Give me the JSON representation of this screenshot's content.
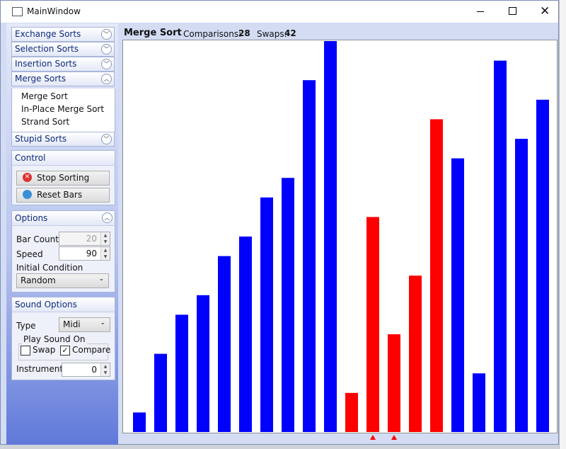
{
  "window": {
    "title": "MainWindow"
  },
  "sidebar": {
    "groups": [
      {
        "label": "Exchange Sorts"
      },
      {
        "label": "Selection Sorts"
      },
      {
        "label": "Insertion Sorts"
      },
      {
        "label": "Merge Sorts",
        "items": [
          "Merge Sort",
          "In-Place Merge Sort",
          "Strand Sort"
        ]
      },
      {
        "label": "Stupid Sorts"
      }
    ]
  },
  "control": {
    "title": "Control",
    "buttons": [
      "Stop Sorting",
      "Reset Bars"
    ]
  },
  "options": {
    "title": "Options",
    "bar_count_label": "Bar Count",
    "bar_count": 20,
    "speed_label": "Speed",
    "speed": 90,
    "initial_condition_label": "Initial Condition",
    "initial_condition": "Random"
  },
  "sound_options": {
    "title": "Sound Options",
    "type_label": "Type",
    "type": "Midi",
    "play_sound_on": "Play Sound On",
    "swap": "Swap",
    "swap_checked": false,
    "compare": "Compare",
    "compare_checked": true,
    "instrument_label": "Instrument",
    "instrument": 0
  },
  "header": {
    "algorithm": "Merge Sort",
    "comparisons_label": "Comparisons:",
    "comparisons": 28,
    "swaps_label": "Swaps:",
    "swaps": 42
  },
  "bars": {
    "values": [
      1,
      4,
      6,
      7,
      9,
      10,
      12,
      13,
      18,
      20,
      2,
      11,
      5,
      8,
      16,
      14,
      3,
      19,
      15,
      17
    ],
    "colors": [
      "#0000ff",
      "#0000ff",
      "#0000ff",
      "#0000ff",
      "#0000ff",
      "#0000ff",
      "#0000ff",
      "#0000ff",
      "#0000ff",
      "#0000ff",
      "#ff0000",
      "#ff0000",
      "#ff0000",
      "#ff0000",
      "#ff0000",
      "#0000ff",
      "#0000ff",
      "#0000ff",
      "#0000ff",
      "#0000ff"
    ],
    "pointers": [
      11,
      12
    ]
  }
}
